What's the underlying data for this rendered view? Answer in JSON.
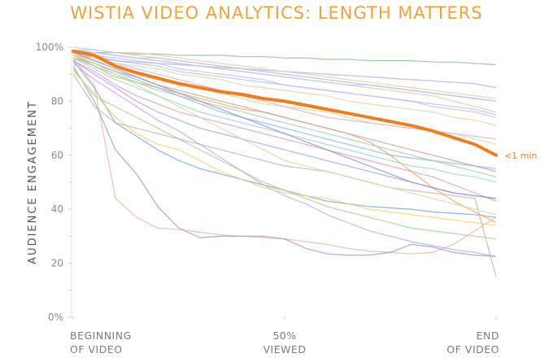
{
  "chart_data": {
    "type": "line",
    "title": "WISTIA VIDEO ANALYTICS: LENGTH MATTERS",
    "ylabel": "AUDIENCE ENGAGEMENT",
    "xlabel": "",
    "ylim": [
      0,
      100
    ],
    "y_ticks": [
      "0%",
      "20",
      "40",
      "60",
      "80",
      "100%"
    ],
    "x_ticks": [
      {
        "line1": "BEGINNING",
        "line2": "OF VIDEO"
      },
      {
        "line1": "50%",
        "line2": "VIEWED"
      },
      {
        "line1": "END",
        "line2": "OF VIDEO"
      }
    ],
    "x": [
      0,
      5,
      10,
      15,
      20,
      25,
      30,
      35,
      40,
      45,
      50,
      55,
      60,
      65,
      70,
      75,
      80,
      85,
      90,
      95,
      100
    ],
    "highlight": {
      "name": "<1 min",
      "color": "#ef7d1a",
      "values": [
        98.5,
        97,
        93,
        90.5,
        88.5,
        86.5,
        85,
        83.5,
        82.5,
        81,
        80,
        78.5,
        77,
        75.5,
        74,
        72.5,
        71,
        69,
        66.5,
        64,
        60
      ]
    },
    "background_series": [
      {
        "color": "#e8b8a0",
        "values": [
          96,
          86,
          44,
          37,
          33,
          32.5,
          31.5,
          30.5,
          30,
          29.5,
          29,
          28,
          27,
          25.5,
          24.5,
          24,
          23.5,
          24,
          27,
          32,
          37
        ]
      },
      {
        "color": "#9a9ad8",
        "values": [
          93,
          80,
          62,
          53,
          41,
          33,
          29.5,
          30,
          30,
          30,
          29,
          25.5,
          23.5,
          23,
          23,
          24,
          27,
          26,
          24,
          23,
          22.5
        ]
      },
      {
        "color": "#7aa8d8",
        "values": [
          95,
          85,
          72,
          67,
          62,
          58,
          55,
          53,
          51,
          49,
          47,
          45,
          43,
          42,
          41,
          40.5,
          40,
          39,
          38.5,
          38,
          37
        ]
      },
      {
        "color": "#a8cf9a",
        "values": [
          92,
          82,
          78,
          74,
          70,
          66,
          62,
          58,
          54,
          50,
          47,
          44,
          41,
          39,
          37,
          35,
          33,
          32,
          31,
          30,
          29
        ]
      },
      {
        "color": "#cba8d8",
        "values": [
          94,
          88,
          83,
          78,
          73,
          69,
          64,
          59,
          54,
          49,
          45,
          42,
          38,
          35,
          32,
          30,
          28,
          26.5,
          25,
          24,
          22.5
        ]
      },
      {
        "color": "#f2d36a",
        "values": [
          91,
          83,
          74,
          68,
          64,
          62,
          58,
          54,
          51,
          48,
          46,
          45,
          44,
          42,
          40,
          39,
          38,
          37,
          36,
          35,
          34
        ]
      },
      {
        "color": "#b8b8b8",
        "values": [
          90,
          78,
          72,
          70,
          68,
          66,
          64,
          62,
          60,
          58,
          56,
          55,
          54,
          52,
          50,
          48,
          47,
          46,
          45,
          44,
          15
        ]
      },
      {
        "color": "#f2a65a",
        "values": [
          97,
          93,
          89,
          87,
          85,
          83,
          81,
          79,
          77,
          76,
          74,
          72,
          70,
          68,
          65,
          60,
          54,
          48,
          43,
          39,
          35
        ]
      },
      {
        "color": "#9ad8c8",
        "values": [
          96,
          92,
          88,
          85,
          82,
          79,
          76,
          74,
          72,
          70,
          68,
          66,
          64,
          62,
          60,
          58,
          56,
          55,
          53,
          52,
          50
        ]
      },
      {
        "color": "#d8a0c8",
        "values": [
          95,
          91,
          86,
          82,
          79,
          76,
          74,
          72,
          70,
          68,
          66,
          64,
          62,
          60,
          58,
          56,
          54,
          52,
          49,
          46,
          43
        ]
      },
      {
        "color": "#8fc49a",
        "values": [
          98,
          98,
          98,
          97.5,
          97.5,
          97,
          97,
          97,
          96.5,
          96.5,
          96,
          96,
          95.5,
          95.5,
          95,
          95,
          95,
          94.5,
          94.5,
          94,
          93.5
        ]
      },
      {
        "color": "#b0b0e8",
        "values": [
          97,
          96,
          95,
          94.5,
          94,
          93.5,
          93,
          92.5,
          92,
          91.5,
          91,
          90.5,
          90,
          89.5,
          89,
          88.5,
          88,
          87.5,
          87,
          86.5,
          85
        ]
      },
      {
        "color": "#e8c890",
        "values": [
          99,
          98,
          97,
          96,
          95,
          94,
          93,
          92,
          91,
          90,
          89,
          88,
          87,
          86,
          85,
          84,
          83,
          82,
          80,
          78,
          76
        ]
      },
      {
        "color": "#a0c8e8",
        "values": [
          98,
          97,
          95,
          94,
          93,
          91,
          90,
          89,
          88,
          87,
          86,
          85,
          84,
          83,
          82,
          81,
          80,
          79,
          78,
          77,
          75
        ]
      },
      {
        "color": "#d8d8a0",
        "values": [
          97,
          95,
          93,
          91,
          89,
          87,
          85,
          83,
          81,
          79,
          78,
          77,
          76,
          74,
          72,
          71,
          70,
          69,
          68,
          66,
          64
        ]
      },
      {
        "color": "#c8a0a0",
        "values": [
          96,
          94,
          91,
          89,
          86,
          84,
          82,
          80,
          78,
          76,
          74,
          72,
          70,
          68,
          66,
          64,
          62,
          60,
          58,
          56,
          54
        ]
      },
      {
        "color": "#a8a8e0",
        "values": [
          95,
          90,
          85,
          80,
          76,
          73,
          70,
          68,
          66,
          64,
          62,
          60,
          58,
          56,
          54,
          52,
          50,
          48,
          46,
          45,
          44
        ]
      },
      {
        "color": "#b8d8a8",
        "values": [
          99,
          98,
          97,
          96,
          96,
          95,
          94,
          93,
          92,
          91,
          90,
          89,
          88,
          87,
          86,
          85,
          84,
          83,
          82,
          81,
          80
        ]
      },
      {
        "color": "#e0b0d0",
        "values": [
          98,
          96,
          94,
          92,
          90,
          88,
          86,
          84,
          82,
          80,
          78,
          76,
          74,
          73,
          72,
          71,
          70,
          69,
          68,
          67,
          66
        ]
      },
      {
        "color": "#90b8d8",
        "values": [
          97,
          94,
          91,
          88,
          85,
          82,
          79,
          76,
          74,
          72,
          70,
          68,
          66,
          64,
          62,
          60,
          59,
          58,
          57,
          56,
          55
        ]
      },
      {
        "color": "#f0c8a0",
        "values": [
          99,
          99,
          98,
          98,
          97,
          96,
          95,
          94,
          93,
          92,
          91,
          90,
          89,
          88,
          87,
          86,
          85,
          84,
          83,
          82,
          81
        ]
      },
      {
        "color": "#c0c0f0",
        "values": [
          100,
          99,
          98,
          97,
          96,
          95,
          94,
          93,
          92,
          91,
          90,
          89,
          88,
          87,
          86,
          85,
          84,
          83,
          82,
          81,
          80
        ]
      },
      {
        "color": "#a0d0b0",
        "values": [
          96,
          93,
          90,
          87,
          84,
          82,
          80,
          78,
          76,
          74,
          72,
          70,
          68,
          66,
          64,
          62,
          60,
          58,
          56,
          54,
          52
        ]
      },
      {
        "color": "#d0b8e8",
        "values": [
          98,
          97,
          96,
          95,
          94,
          92,
          91,
          90,
          89,
          88,
          86,
          85,
          84,
          83,
          82,
          81,
          80,
          78,
          77,
          76,
          74
        ]
      },
      {
        "color": "#e8d0a8",
        "values": [
          97,
          96,
          94,
          93,
          92,
          90,
          89,
          88,
          86,
          85,
          84,
          83,
          82,
          80,
          79,
          78,
          77,
          76,
          74,
          73,
          71
        ]
      },
      {
        "color": "#b0c8e8",
        "values": [
          99,
          98,
          97,
          96,
          95,
          94,
          93,
          92,
          91,
          90,
          89,
          88,
          87,
          86,
          86,
          85,
          84,
          83,
          82,
          81,
          80
        ]
      },
      {
        "color": "#9090d0",
        "values": [
          98,
          95,
          92,
          89,
          86,
          83,
          80,
          77,
          74,
          71,
          68,
          65,
          62,
          59,
          56,
          53,
          50,
          48,
          46,
          45,
          44
        ]
      },
      {
        "color": "#c8e0a0",
        "values": [
          97,
          94,
          90,
          86,
          82,
          78,
          74,
          70,
          66,
          62,
          58,
          56,
          54,
          52,
          50,
          48,
          46,
          44,
          42,
          40,
          38
        ]
      }
    ]
  }
}
